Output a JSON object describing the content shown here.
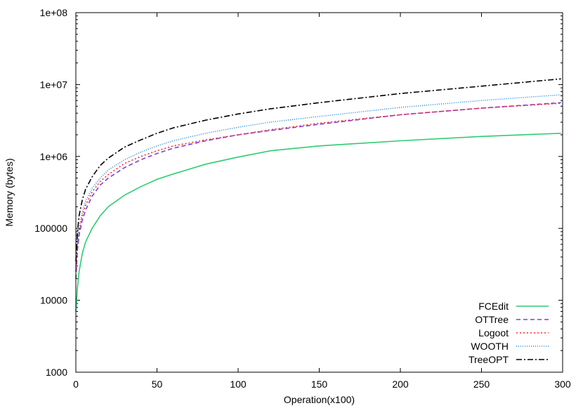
{
  "chart_data": {
    "type": "line",
    "title": "",
    "xlabel": "Operation(x100)",
    "ylabel": "Memory (bytes)",
    "xlim": [
      0,
      300
    ],
    "ylim": [
      1000,
      100000000
    ],
    "yscale": "log",
    "grid": false,
    "legend_position": "bottom-right",
    "x_ticks": [
      0,
      50,
      100,
      150,
      200,
      250,
      300
    ],
    "x_tick_labels": [
      "0",
      "50",
      "100",
      "150",
      "200",
      "250",
      "300"
    ],
    "y_ticks": [
      1000,
      10000,
      100000,
      1000000,
      10000000,
      100000000
    ],
    "y_tick_labels": [
      "1000",
      "10000",
      "100000",
      "1e+06",
      "1e+07",
      "1e+08"
    ],
    "x": [
      0,
      1,
      2,
      4,
      6,
      10,
      15,
      20,
      30,
      40,
      50,
      60,
      80,
      100,
      120,
      150,
      200,
      250,
      299
    ],
    "series": [
      {
        "name": "FCEdit",
        "color": "#2ecc71",
        "dash": "",
        "values": [
          7000,
          15000,
          25000,
          45000,
          65000,
          100000,
          150000,
          200000,
          290000,
          380000,
          480000,
          570000,
          780000,
          980000,
          1200000,
          1400000,
          1650000,
          1900000,
          2100000
        ]
      },
      {
        "name": "OTTree",
        "color": "#7b3fe4",
        "dash": "6,4",
        "values": [
          20000,
          50000,
          80000,
          130000,
          180000,
          280000,
          400000,
          500000,
          700000,
          900000,
          1100000,
          1300000,
          1650000,
          2000000,
          2300000,
          2800000,
          3800000,
          4700000,
          5600000
        ]
      },
      {
        "name": "Logoot",
        "color": "#ff2a2a",
        "dash": "2,3",
        "values": [
          25000,
          55000,
          90000,
          150000,
          210000,
          320000,
          450000,
          560000,
          800000,
          1000000,
          1200000,
          1400000,
          1700000,
          2000000,
          2350000,
          2900000,
          3800000,
          4700000,
          5500000
        ]
      },
      {
        "name": "WOOTH",
        "color": "#1f8ad8",
        "dash": "1,2",
        "values": [
          30000,
          60000,
          100000,
          170000,
          240000,
          360000,
          500000,
          650000,
          900000,
          1150000,
          1400000,
          1650000,
          2100000,
          2550000,
          3000000,
          3600000,
          4800000,
          6000000,
          7200000
        ]
      },
      {
        "name": "TreeOPT",
        "color": "#000000",
        "dash": "8,3,2,3",
        "values": [
          35000,
          90000,
          150000,
          250000,
          350000,
          520000,
          750000,
          950000,
          1350000,
          1700000,
          2100000,
          2500000,
          3200000,
          3900000,
          4600000,
          5600000,
          7500000,
          9500000,
          12000000
        ]
      }
    ]
  }
}
